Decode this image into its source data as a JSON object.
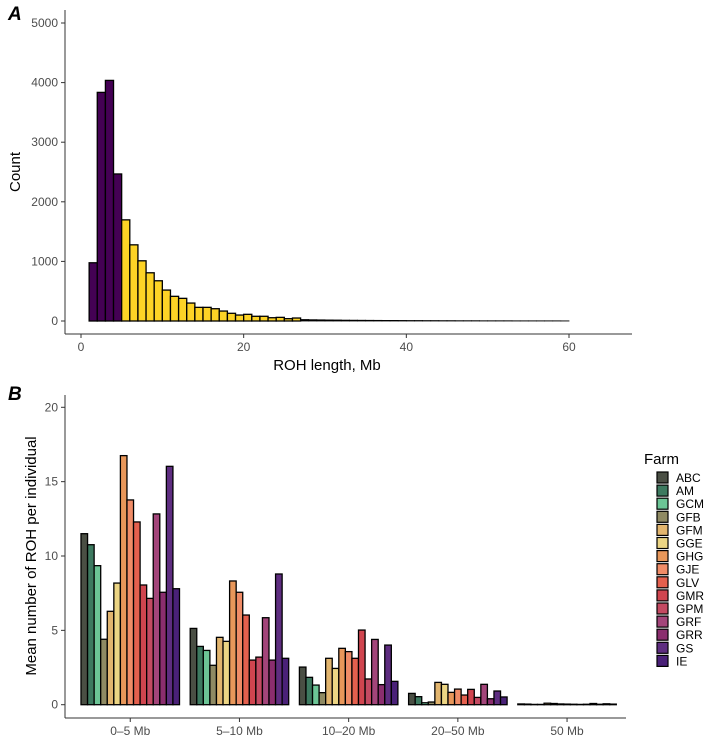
{
  "chart_data": [
    {
      "type": "bar",
      "panel_label": "A",
      "title": "",
      "xlabel": "ROH length, Mb",
      "ylabel": "Count",
      "xlim": [
        0,
        60
      ],
      "ylim": [
        0,
        5000
      ],
      "x_ticks": [
        "0",
        "20",
        "40",
        "60"
      ],
      "y_ticks": [
        "0",
        "1000",
        "2000",
        "3000",
        "4000",
        "5000"
      ],
      "bin_width": 1,
      "bin_starts": [
        1,
        2,
        3,
        4,
        5,
        6,
        7,
        8,
        9,
        10,
        11,
        12,
        13,
        14,
        15,
        16,
        17,
        18,
        19,
        20,
        21,
        22,
        23,
        24,
        25,
        26,
        27,
        28,
        29,
        30,
        31,
        32,
        33,
        34,
        35,
        36,
        37,
        38,
        39,
        40,
        41,
        42,
        43,
        44,
        45,
        46,
        47,
        48,
        49,
        50,
        51,
        52,
        53,
        54,
        55,
        56,
        57,
        58,
        59
      ],
      "values": [
        977,
        3836,
        4037,
        2467,
        1697,
        1278,
        1010,
        809,
        675,
        519,
        414,
        380,
        301,
        229,
        229,
        206,
        167,
        129,
        100,
        112,
        79,
        79,
        55,
        61,
        39,
        50,
        25,
        22,
        20,
        18,
        17,
        15,
        14,
        13,
        12,
        11,
        10,
        10,
        9,
        8,
        8,
        7,
        7,
        6,
        6,
        5,
        5,
        5,
        4,
        4,
        4,
        4,
        3,
        3,
        3,
        3,
        3,
        3,
        2
      ],
      "highlight_below": 5,
      "colors": {
        "short": "#440154",
        "long": "#fdd326",
        "tail": "#000000"
      },
      "grid": false
    },
    {
      "type": "bar",
      "panel_label": "B",
      "title": "",
      "xlabel": "",
      "ylabel": "Mean number of ROH per individual",
      "ylim": [
        0,
        20
      ],
      "y_ticks": [
        "0",
        "5",
        "10",
        "15",
        "20"
      ],
      "categories": [
        "0–5 Mb",
        "5–10 Mb",
        "10–20 Mb",
        "20–50 Mb",
        "50 Mb"
      ],
      "legend_title": "Farm",
      "legend_position": "right",
      "grid": false,
      "series": [
        {
          "name": "ABC",
          "color": "#4a4f44",
          "values": [
            11.5,
            5.13,
            2.53,
            0.76,
            0.05
          ]
        },
        {
          "name": "AM",
          "color": "#3d7a60",
          "values": [
            10.76,
            3.92,
            1.84,
            0.54,
            0.04
          ]
        },
        {
          "name": "GCM",
          "color": "#6cc596",
          "values": [
            9.35,
            3.65,
            1.32,
            0.13,
            0.02
          ]
        },
        {
          "name": "GFB",
          "color": "#8f8a63",
          "values": [
            4.4,
            2.65,
            0.81,
            0.18,
            0.02
          ]
        },
        {
          "name": "GFM",
          "color": "#e2b56e",
          "values": [
            6.28,
            4.53,
            3.12,
            1.5,
            0.1
          ]
        },
        {
          "name": "GGE",
          "color": "#ecd584",
          "values": [
            8.18,
            4.26,
            2.44,
            1.37,
            0.08
          ]
        },
        {
          "name": "GHG",
          "color": "#e8975a",
          "values": [
            16.75,
            8.32,
            3.79,
            0.83,
            0.05
          ]
        },
        {
          "name": "GJE",
          "color": "#f08c67",
          "values": [
            13.77,
            7.56,
            3.57,
            1.05,
            0.04
          ]
        },
        {
          "name": "GLV",
          "color": "#e4604e",
          "values": [
            12.29,
            6.03,
            3.12,
            0.65,
            0.03
          ]
        },
        {
          "name": "GMR",
          "color": "#d0454f",
          "values": [
            8.05,
            3.0,
            5.02,
            1.03,
            0.02
          ]
        },
        {
          "name": "GPM",
          "color": "#c44a62",
          "values": [
            7.15,
            3.2,
            1.73,
            0.49,
            0.03
          ]
        },
        {
          "name": "GRF",
          "color": "#a3457a",
          "values": [
            12.83,
            5.85,
            4.39,
            1.37,
            0.08
          ]
        },
        {
          "name": "GRR",
          "color": "#8b2e6e",
          "values": [
            7.56,
            3.0,
            1.35,
            0.4,
            0.03
          ]
        },
        {
          "name": "GS",
          "color": "#5e2d80",
          "values": [
            16.03,
            8.79,
            4.01,
            0.92,
            0.06
          ]
        },
        {
          "name": "IE",
          "color": "#4a2178",
          "values": [
            7.8,
            3.12,
            1.57,
            0.52,
            0.04
          ]
        }
      ]
    }
  ]
}
